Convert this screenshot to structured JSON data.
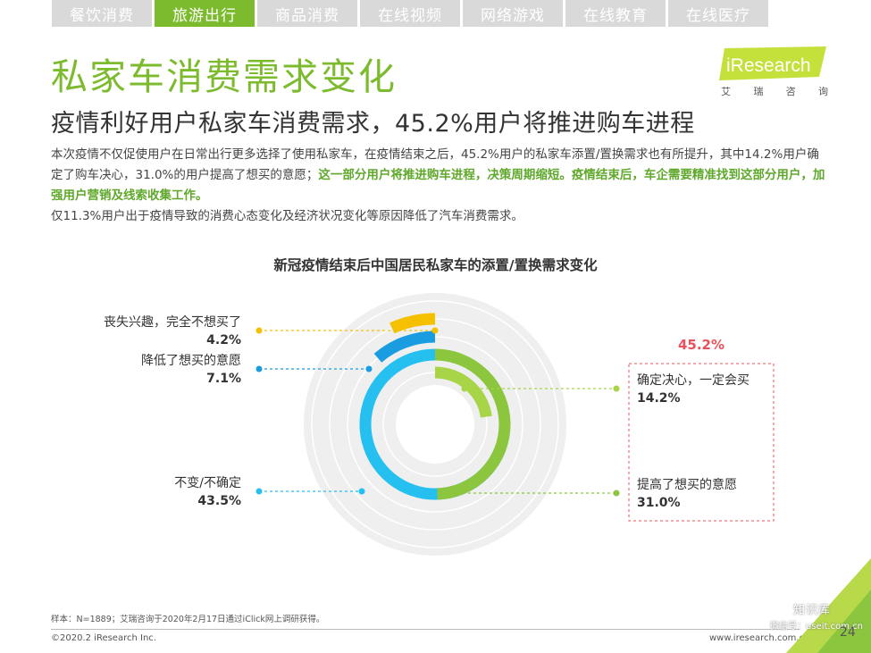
{
  "tabs": [
    {
      "label": "餐饮消费",
      "active": false
    },
    {
      "label": "旅游出行",
      "active": true
    },
    {
      "label": "商品消费",
      "active": false
    },
    {
      "label": "在线视频",
      "active": false
    },
    {
      "label": "网络游戏",
      "active": false
    },
    {
      "label": "在线教育",
      "active": false
    },
    {
      "label": "在线医疗",
      "active": false
    }
  ],
  "header": {
    "title": "私家车消费需求变化",
    "subtitle": "疫情利好用户私家车消费需求，45.2%用户将推进购车进程",
    "logo_text": "iResearch",
    "logo_sub": [
      "艾",
      "瑞",
      "咨",
      "询"
    ]
  },
  "body": {
    "p1_normal": "本次疫情不仅促使用户在日常出行更多选择了使用私家车，在疫情结束之后，45.2%用户的私家车添置/置换需求也有所提升，其中14.2%用户确定了购车决心，31.0%的用户提高了想买的意愿；",
    "p1_highlight": "这一部分用户将推进购车进程，决策周期缩短。疫情结束后，车企需要精准找到这部分用户，加强用户营销及线索收集工作。",
    "p2": "仅11.3%用户出于疫情导致的消费心态变化及经济状况变化等原因降低了汽车消费需求。"
  },
  "chart_data": {
    "type": "radial-bar",
    "title": "新冠疫情结束后中国居民私家车的添置/置换需求变化",
    "unit": "%",
    "series": [
      {
        "label": "丧失兴趣，完全不想买了",
        "value": 4.2,
        "value_label": "4.2%",
        "color": "#f5c000",
        "side": "left"
      },
      {
        "label": "降低了想买的意愿",
        "value": 7.1,
        "value_label": "7.1%",
        "color": "#1a9de0",
        "side": "left"
      },
      {
        "label": "不变/不确定",
        "value": 43.5,
        "value_label": "43.5%",
        "color": "#25c0f0",
        "side": "left"
      },
      {
        "label": "提高了想买的意愿",
        "value": 31.0,
        "value_label": "31.0%",
        "color": "#8cc63f",
        "side": "right"
      },
      {
        "label": "确定决心，一定会买",
        "value": 14.2,
        "value_label": "14.2%",
        "color": "#a8d448",
        "side": "right"
      }
    ],
    "group_label": "45.2%",
    "group_color": "#e8525a"
  },
  "footer": {
    "note": "样本：N=1889；艾瑞咨询于2020年2月17日通过iClick网上调研获得。",
    "copyright": "©2020.2 iResearch Inc.",
    "website": "www.iresearch.com.cn",
    "page": "24",
    "watermark_1": "知识库",
    "watermark_2": "微信号：useit.com.cn"
  }
}
